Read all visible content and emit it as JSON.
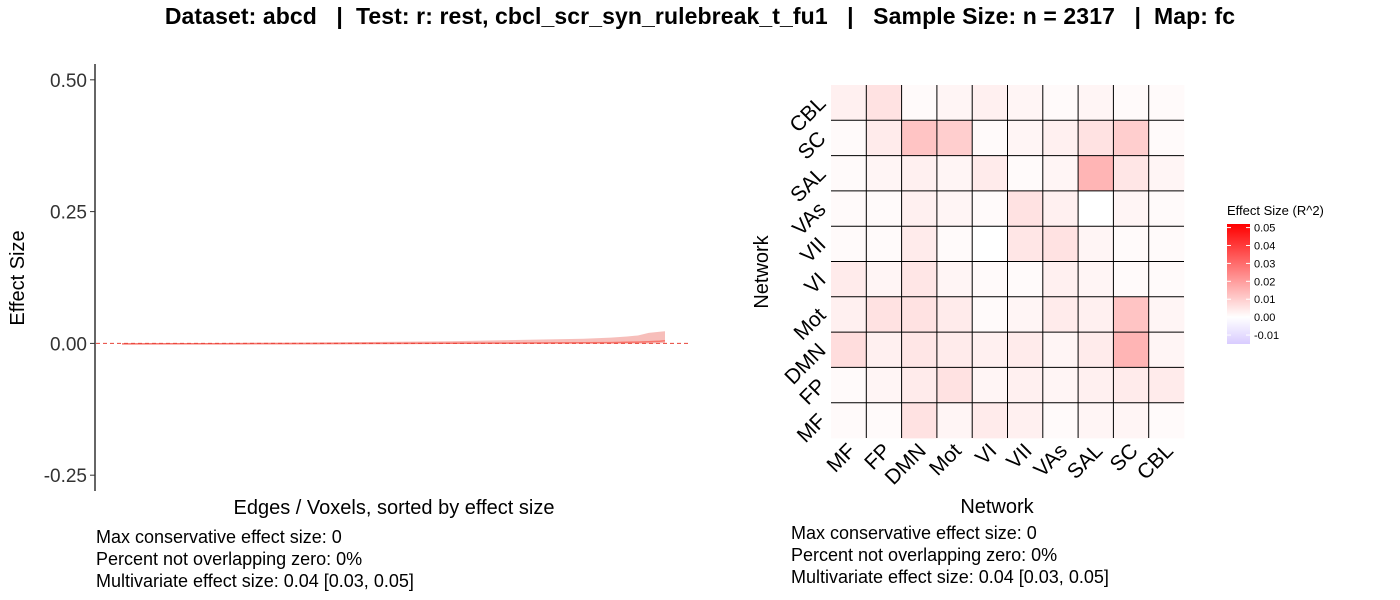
{
  "title": "Dataset: abcd   |  Test: r: rest, cbcl_scr_syn_rulebreak_t_fu1   |   Sample Size: n = 2317   |  Map: fc",
  "colors": {
    "line": "#f8766d",
    "ribbon": "#f4a8a3",
    "zero_line": "#e8443a",
    "heat_high": "#ff0000",
    "heat_mid": "#ffffff",
    "heat_low": "#d9ccff",
    "grid_line": "#000000"
  },
  "chart_data": [
    {
      "type": "line",
      "xlabel": "Edges / Voxels, sorted by effect size",
      "ylabel": "Effect Size",
      "ylim": [
        -0.28,
        0.53
      ],
      "yticks": [
        {
          "value": 0.5,
          "label": "0.50"
        },
        {
          "value": 0.25,
          "label": "0.25"
        },
        {
          "value": 0.0,
          "label": "0.00"
        },
        {
          "value": -0.25,
          "label": "-0.25"
        }
      ],
      "reference_line": 0,
      "series": [
        {
          "x": [
            0.0,
            0.1,
            0.2,
            0.3,
            0.4,
            0.5,
            0.6,
            0.7,
            0.8,
            0.85,
            0.9,
            0.93,
            0.95,
            0.97,
            0.99,
            1.0
          ],
          "y": [
            -0.001,
            -0.0008,
            -0.0006,
            -0.0004,
            -0.0002,
            0.0,
            0.0002,
            0.0005,
            0.0009,
            0.0012,
            0.0016,
            0.002,
            0.0025,
            0.003,
            0.004,
            0.005
          ],
          "lower": [
            -0.002,
            -0.0018,
            -0.0016,
            -0.0015,
            -0.0014,
            -0.0013,
            -0.0012,
            -0.001,
            -0.0008,
            -0.0007,
            -0.0006,
            -0.0005,
            -0.0004,
            -0.0003,
            0.0,
            0.001
          ],
          "upper": [
            0.0,
            0.0005,
            0.001,
            0.0015,
            0.002,
            0.003,
            0.004,
            0.006,
            0.008,
            0.009,
            0.011,
            0.013,
            0.015,
            0.02,
            0.022,
            0.023
          ]
        }
      ],
      "stats": [
        "Max conservative effect size: 0",
        "Percent not overlapping zero: 0%",
        "Multivariate effect size: 0.04 [0.03, 0.05]"
      ]
    },
    {
      "type": "heatmap",
      "xlabel": "Network",
      "ylabel": "Network",
      "x_categories": [
        "MF",
        "FP",
        "DMN",
        "Mot",
        "VI",
        "VII",
        "VAs",
        "SAL",
        "SC",
        "CBL"
      ],
      "y_categories": [
        "CBL",
        "SC",
        "SAL",
        "VAs",
        "VII",
        "VI",
        "Mot",
        "DMN",
        "FP",
        "MF"
      ],
      "values": [
        [
          0.003,
          0.006,
          0.001,
          0.002,
          0.003,
          0.002,
          0.001,
          0.002,
          0.001,
          0.001
        ],
        [
          0.001,
          0.004,
          0.012,
          0.01,
          0.001,
          0.002,
          0.003,
          0.006,
          0.01,
          0.001
        ],
        [
          0.001,
          0.002,
          0.003,
          0.002,
          0.004,
          0.001,
          0.002,
          0.015,
          0.005,
          0.002
        ],
        [
          0.001,
          0.001,
          0.003,
          0.002,
          0.001,
          0.006,
          0.003,
          0.0,
          0.002,
          0.001
        ],
        [
          0.001,
          0.001,
          0.004,
          0.001,
          0.0,
          0.005,
          0.006,
          0.002,
          0.001,
          0.001
        ],
        [
          0.004,
          0.002,
          0.005,
          0.002,
          0.001,
          0.001,
          0.003,
          0.002,
          0.001,
          0.001
        ],
        [
          0.003,
          0.006,
          0.006,
          0.004,
          0.001,
          0.002,
          0.004,
          0.003,
          0.012,
          0.002
        ],
        [
          0.007,
          0.003,
          0.005,
          0.004,
          0.003,
          0.004,
          0.002,
          0.004,
          0.015,
          0.002
        ],
        [
          0.001,
          0.002,
          0.004,
          0.006,
          0.002,
          0.003,
          0.002,
          0.003,
          0.004,
          0.004
        ],
        [
          0.001,
          0.001,
          0.006,
          0.002,
          0.004,
          0.003,
          0.001,
          0.002,
          0.002,
          0.001
        ]
      ],
      "legend": {
        "title": "Effect Size (R^2)",
        "min": -0.015,
        "max": 0.052,
        "ticks": [
          {
            "value": 0.05,
            "label": "0.05"
          },
          {
            "value": 0.04,
            "label": "0.04"
          },
          {
            "value": 0.03,
            "label": "0.03"
          },
          {
            "value": 0.02,
            "label": "0.02"
          },
          {
            "value": 0.01,
            "label": "0.01"
          },
          {
            "value": 0.0,
            "label": "0.00"
          },
          {
            "value": -0.01,
            "label": "-0.01"
          }
        ],
        "placement": "right"
      },
      "stats": [
        "Max conservative effect size: 0",
        "Percent not overlapping zero: 0%",
        "Multivariate effect size: 0.04 [0.03, 0.05]"
      ]
    }
  ]
}
